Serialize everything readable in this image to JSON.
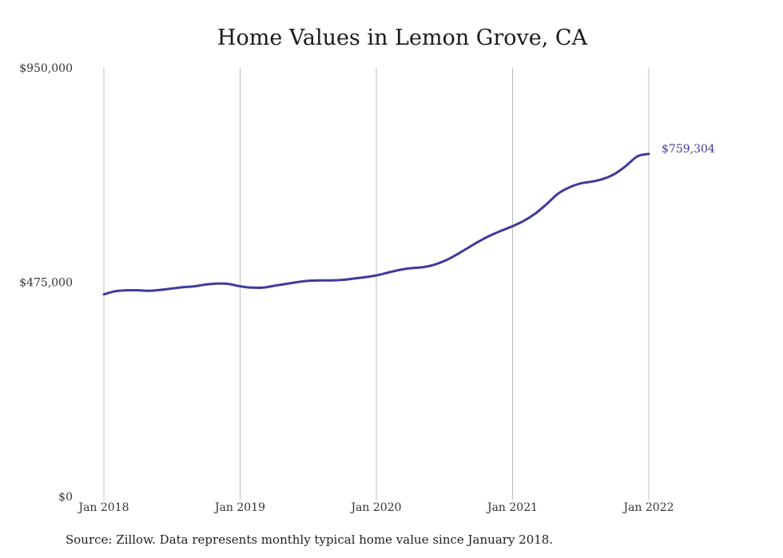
{
  "chart_data": {
    "type": "line",
    "title": "Home Values in Lemon Grove, CA",
    "xlabel": "",
    "ylabel": "",
    "x_tick_labels": [
      "Jan 2018",
      "Jan 2019",
      "Jan 2020",
      "Jan 2021",
      "Jan 2022"
    ],
    "y_tick_labels": [
      "$0",
      "$475,000",
      "$950,000"
    ],
    "y_ticks": [
      0,
      475000,
      950000
    ],
    "ylim": [
      0,
      950000
    ],
    "grid": "vertical",
    "series_color": "#3f3a9c",
    "end_label": "$759,304",
    "series": [
      {
        "values": [
          448000,
          455000,
          457000,
          457000,
          456000,
          458000,
          461000,
          464000,
          466000,
          470000,
          472000,
          471000,
          466000,
          463000,
          463000,
          467000,
          471000,
          475000,
          478000,
          479000,
          479000,
          480000,
          483000,
          486000,
          490000,
          496000,
          502000,
          506000,
          508000,
          513000,
          522000,
          535000,
          550000,
          565000,
          578000,
          589000,
          599000,
          611000,
          627000,
          648000,
          671000,
          685000,
          694000,
          698000,
          704000,
          715000,
          733000,
          754000,
          759304
        ]
      }
    ]
  },
  "source_note": "Source: Zillow. Data represents monthly typical home value since January 2018."
}
